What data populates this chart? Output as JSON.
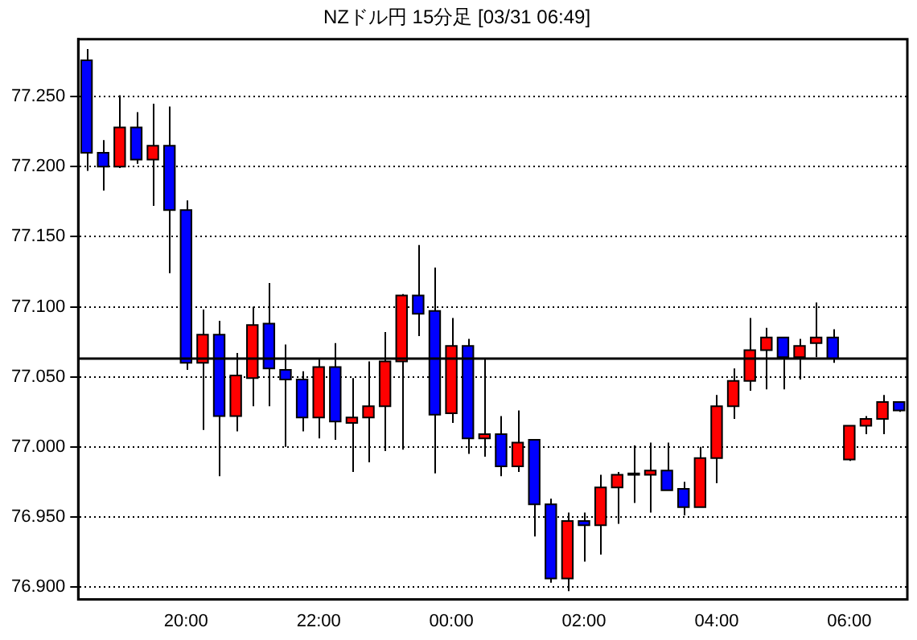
{
  "chart_data": {
    "type": "candlestick",
    "title": "NZドル円 15分足 [03/31 06:49]",
    "categories": [
      null,
      null,
      null,
      null,
      null,
      null,
      "20:00",
      null,
      null,
      null,
      null,
      null,
      null,
      null,
      "22:00",
      null,
      null,
      null,
      null,
      null,
      null,
      null,
      "00:00",
      null,
      null,
      null,
      null,
      null,
      null,
      null,
      "02:00",
      null,
      null,
      null,
      null,
      null,
      null,
      null,
      "04:00",
      null,
      null,
      null,
      null,
      null,
      null,
      null,
      "06:00",
      null,
      null,
      null
    ],
    "ohlc": [
      [
        77.276,
        77.284,
        77.197,
        77.21
      ],
      [
        77.21,
        77.219,
        77.183,
        77.2
      ],
      [
        77.2,
        77.251,
        77.199,
        77.228
      ],
      [
        77.228,
        77.239,
        77.202,
        77.205
      ],
      [
        77.205,
        77.245,
        77.172,
        77.215
      ],
      [
        77.215,
        77.243,
        77.124,
        77.169
      ],
      [
        77.169,
        77.176,
        77.055,
        77.06
      ],
      [
        77.06,
        77.098,
        77.012,
        77.08
      ],
      [
        77.08,
        77.09,
        76.979,
        77.022
      ],
      [
        77.022,
        77.067,
        77.011,
        77.051
      ],
      [
        77.049,
        77.1,
        77.029,
        77.087
      ],
      [
        77.088,
        77.117,
        77.029,
        77.056
      ],
      [
        77.055,
        77.073,
        77.0,
        77.048
      ],
      [
        77.048,
        77.054,
        77.011,
        77.021
      ],
      [
        77.021,
        77.063,
        77.006,
        77.057
      ],
      [
        77.057,
        77.074,
        77.005,
        77.018
      ],
      [
        77.017,
        77.049,
        76.982,
        77.021
      ],
      [
        77.021,
        77.061,
        76.989,
        77.029
      ],
      [
        77.029,
        77.082,
        76.997,
        77.061
      ],
      [
        77.061,
        77.109,
        76.998,
        77.108
      ],
      [
        77.108,
        77.144,
        77.079,
        77.095
      ],
      [
        77.097,
        77.128,
        76.981,
        77.023
      ],
      [
        77.024,
        77.092,
        77.017,
        77.072
      ],
      [
        77.072,
        77.077,
        76.995,
        77.006
      ],
      [
        77.006,
        77.063,
        76.993,
        77.009
      ],
      [
        77.009,
        77.022,
        76.979,
        76.986
      ],
      [
        76.986,
        77.026,
        76.982,
        77.003
      ],
      [
        77.005,
        77.005,
        76.936,
        76.959
      ],
      [
        76.959,
        76.963,
        76.903,
        76.906
      ],
      [
        76.906,
        76.953,
        76.897,
        76.947
      ],
      [
        76.947,
        76.953,
        76.918,
        76.944
      ],
      [
        76.944,
        76.98,
        76.923,
        76.971
      ],
      [
        76.971,
        76.982,
        76.945,
        76.98
      ],
      [
        76.98,
        77.001,
        76.96,
        76.981
      ],
      [
        76.98,
        77.003,
        76.953,
        76.983
      ],
      [
        76.983,
        77.003,
        76.969,
        76.969
      ],
      [
        76.97,
        76.975,
        76.951,
        76.957
      ],
      [
        76.957,
        77.0,
        76.957,
        76.992
      ],
      [
        76.992,
        77.037,
        76.974,
        77.029
      ],
      [
        77.029,
        77.056,
        77.02,
        77.047
      ],
      [
        77.047,
        77.092,
        77.04,
        77.069
      ],
      [
        77.069,
        77.085,
        77.041,
        77.078
      ],
      [
        77.078,
        77.078,
        77.041,
        77.064
      ],
      [
        77.064,
        77.077,
        77.048,
        77.072
      ],
      [
        77.074,
        77.103,
        77.064,
        77.078
      ],
      [
        77.078,
        77.084,
        77.06,
        77.063
      ],
      [
        76.991,
        77.015,
        76.99,
        77.015
      ],
      [
        77.015,
        77.022,
        77.009,
        77.02
      ],
      [
        77.02,
        77.037,
        77.009,
        77.032
      ],
      [
        77.032,
        77.032,
        77.025,
        77.026
      ]
    ],
    "colors": [
      "#0000ff",
      "#0000ff",
      "#ff0000",
      "#0000ff",
      "#ff0000",
      "#0000ff",
      "#0000ff",
      "#ff0000",
      "#0000ff",
      "#ff0000",
      "#ff0000",
      "#0000ff",
      "#0000ff",
      "#0000ff",
      "#ff0000",
      "#0000ff",
      "#ff0000",
      "#ff0000",
      "#ff0000",
      "#ff0000",
      "#0000ff",
      "#0000ff",
      "#ff0000",
      "#0000ff",
      "#ff0000",
      "#0000ff",
      "#ff0000",
      "#0000ff",
      "#0000ff",
      "#ff0000",
      "#0000ff",
      "#ff0000",
      "#ff0000",
      "#ff0000",
      "#ff0000",
      "#0000ff",
      "#0000ff",
      "#ff0000",
      "#ff0000",
      "#ff0000",
      "#ff0000",
      "#ff0000",
      "#0000ff",
      "#ff0000",
      "#ff0000",
      "#0000ff",
      "#ff0000",
      "#ff0000",
      "#ff0000",
      "#0000ff"
    ],
    "ylim": [
      76.891,
      77.291
    ],
    "yticks": [
      {
        "value": 76.9,
        "label": "76.900"
      },
      {
        "value": 76.95,
        "label": "76.950"
      },
      {
        "value": 77.0,
        "label": "77.000"
      },
      {
        "value": 77.05,
        "label": "77.050"
      },
      {
        "value": 77.1,
        "label": "77.100"
      },
      {
        "value": 77.15,
        "label": "77.150"
      },
      {
        "value": 77.2,
        "label": "77.200"
      },
      {
        "value": 77.25,
        "label": "77.250"
      }
    ],
    "ref_lines": [
      {
        "axis": "y",
        "value": 77.063,
        "color": "#000000"
      }
    ],
    "grid": "y",
    "legend": false
  }
}
